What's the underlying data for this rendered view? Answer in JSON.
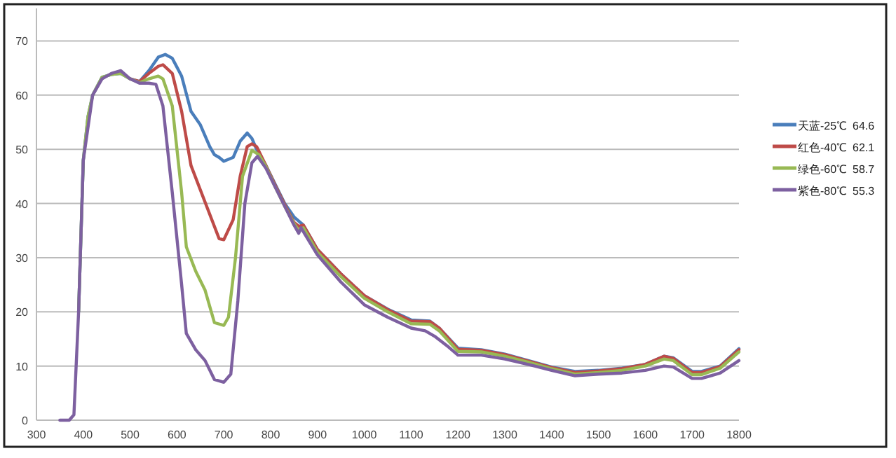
{
  "chart_data": {
    "type": "line",
    "xlim": [
      300,
      1800
    ],
    "xticks": [
      300,
      400,
      500,
      600,
      700,
      800,
      900,
      1000,
      1100,
      1200,
      1300,
      1400,
      1500,
      1600,
      1700,
      1800
    ],
    "ylim": [
      0,
      76
    ],
    "yticks": [
      0,
      10,
      20,
      30,
      40,
      50,
      60,
      70
    ],
    "grid": "y",
    "legend": "right",
    "line_style": "solid",
    "series": [
      {
        "name": "天蓝-25℃  64.6",
        "color": "#4a7ebb",
        "x": [
          390,
          400,
          410,
          420,
          440,
          460,
          480,
          500,
          520,
          540,
          560,
          575,
          590,
          610,
          630,
          650,
          670,
          680,
          690,
          700,
          720,
          735,
          750,
          760,
          770,
          790,
          810,
          830,
          850,
          870,
          900,
          950,
          1000,
          1050,
          1100,
          1140,
          1160,
          1200,
          1250,
          1300,
          1350,
          1400,
          1450,
          1500,
          1550,
          1600,
          1640,
          1660,
          1700,
          1720,
          1760,
          1800
        ],
        "values": [
          20,
          48,
          56,
          60,
          63.3,
          63.8,
          64,
          63,
          62.5,
          64.5,
          67,
          67.5,
          66.8,
          63.5,
          57,
          54.5,
          50.5,
          49,
          48.5,
          47.8,
          48.5,
          51.5,
          53,
          52,
          50,
          47,
          43.5,
          40,
          37.5,
          36,
          31.5,
          27,
          23,
          20.5,
          18.5,
          18.3,
          17,
          13.3,
          13,
          12.2,
          11,
          9.8,
          9,
          9.2,
          9.6,
          10.3,
          11.8,
          11.5,
          9,
          9,
          10,
          13.2
        ]
      },
      {
        "name": "红色-40℃  62.1",
        "color": "#be4b48",
        "x": [
          500,
          520,
          540,
          560,
          570,
          590,
          610,
          630,
          650,
          670,
          690,
          700,
          720,
          735,
          750,
          760,
          770,
          790,
          810,
          830,
          850,
          860,
          870,
          900,
          950,
          1000,
          1050,
          1100,
          1140,
          1160,
          1200,
          1250,
          1300,
          1350,
          1400,
          1450,
          1500,
          1550,
          1600,
          1640,
          1660,
          1700,
          1720,
          1760,
          1800
        ],
        "values": [
          63,
          62.5,
          64,
          65.3,
          65.6,
          64,
          57,
          47,
          42.5,
          38,
          33.5,
          33.3,
          37,
          45,
          50.5,
          51,
          50.5,
          47,
          43.3,
          39.8,
          36.5,
          35.8,
          36,
          31.5,
          27,
          23,
          20.4,
          18.3,
          18.2,
          17,
          13.1,
          12.9,
          12.1,
          10.9,
          9.7,
          8.8,
          9.1,
          9.5,
          10.3,
          11.8,
          11.4,
          8.8,
          8.8,
          9.9,
          13
        ]
      },
      {
        "name": "绿色-60℃  58.7",
        "color": "#98b954",
        "x": [
          390,
          400,
          410,
          420,
          440,
          460,
          480,
          500,
          520,
          540,
          560,
          570,
          590,
          610,
          620,
          640,
          660,
          680,
          700,
          710,
          725,
          740,
          760,
          775,
          790,
          810,
          830,
          850,
          860,
          870,
          900,
          950,
          1000,
          1050,
          1100,
          1140,
          1160,
          1200,
          1250,
          1300,
          1350,
          1400,
          1450,
          1500,
          1550,
          1600,
          1640,
          1660,
          1700,
          1720,
          1760,
          1800
        ],
        "values": [
          20,
          48,
          56,
          60,
          63.3,
          63.8,
          64,
          63,
          62.3,
          63,
          63.5,
          63,
          58,
          42,
          32,
          27.5,
          24,
          18,
          17.5,
          19,
          30,
          45,
          49.8,
          49,
          46.8,
          43,
          39.5,
          36.3,
          35,
          35.5,
          31,
          26.5,
          22.5,
          20,
          17.8,
          17.7,
          16.5,
          12.7,
          12.6,
          11.8,
          10.7,
          9.5,
          8.5,
          8.8,
          9.2,
          10,
          11.3,
          11,
          8.4,
          8.4,
          9.6,
          12.6
        ]
      },
      {
        "name": "紫色-80℃  55.3",
        "color": "#7d60a0",
        "x": [
          350,
          370,
          380,
          390,
          400,
          420,
          440,
          460,
          480,
          500,
          520,
          540,
          555,
          570,
          590,
          610,
          620,
          640,
          660,
          680,
          700,
          715,
          730,
          745,
          760,
          772,
          790,
          810,
          830,
          850,
          860,
          865,
          900,
          950,
          1000,
          1050,
          1100,
          1130,
          1150,
          1180,
          1200,
          1250,
          1300,
          1350,
          1400,
          1450,
          1500,
          1550,
          1600,
          1640,
          1660,
          1700,
          1720,
          1760,
          1800
        ],
        "values": [
          0,
          0,
          1,
          20,
          48,
          60,
          63,
          64,
          64.5,
          63,
          62.2,
          62.2,
          62,
          58,
          42,
          25,
          16,
          13,
          11,
          7.5,
          7,
          8.5,
          22,
          40,
          47.5,
          48.7,
          46.5,
          43,
          39.5,
          36,
          34.5,
          35.5,
          30.5,
          25.5,
          21.3,
          19,
          17,
          16.5,
          15.5,
          13.5,
          12,
          12,
          11.3,
          10.3,
          9.2,
          8.2,
          8.5,
          8.7,
          9.2,
          10,
          9.8,
          7.7,
          7.7,
          8.7,
          11
        ]
      }
    ]
  }
}
